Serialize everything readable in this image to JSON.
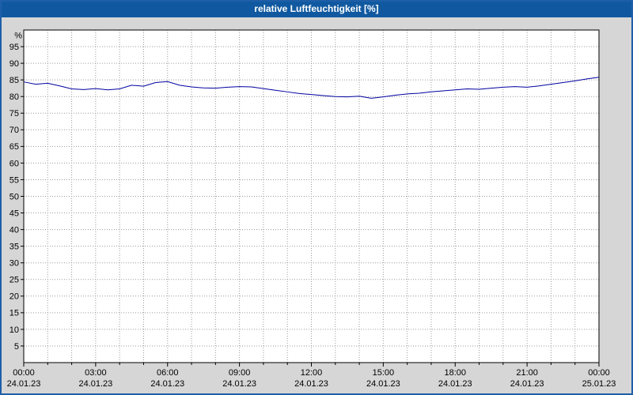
{
  "window": {
    "title": "relative Luftfeuchtigkeit [%]"
  },
  "colors": {
    "titlebar_bg": "#1059a0",
    "titlebar_text": "#ffffff",
    "chart_bg": "#d6d6d6",
    "plot_bg": "#ffffff",
    "grid": "#9a9a9a",
    "axis": "#000000",
    "line": "#0000a0",
    "frame": "#1f5fa8"
  },
  "chart_data": {
    "type": "line",
    "title": "relative Luftfeuchtigkeit [%]",
    "xlabel": "",
    "ylabel": "%",
    "ylim": [
      0,
      100
    ],
    "ytick_min": 5,
    "ytick_max": 95,
    "ytick_step": 5,
    "grid": true,
    "legend": false,
    "x_step_hours": 0.5,
    "xticks": [
      {
        "hour": 0,
        "time": "00:00",
        "date": "24.01.23"
      },
      {
        "hour": 3,
        "time": "03:00",
        "date": "24.01.23"
      },
      {
        "hour": 6,
        "time": "06:00",
        "date": "24.01.23"
      },
      {
        "hour": 9,
        "time": "09:00",
        "date": "24.01.23"
      },
      {
        "hour": 12,
        "time": "12:00",
        "date": "24.01.23"
      },
      {
        "hour": 15,
        "time": "15:00",
        "date": "24.01.23"
      },
      {
        "hour": 18,
        "time": "18:00",
        "date": "24.01.23"
      },
      {
        "hour": 21,
        "time": "21:00",
        "date": "24.01.23"
      },
      {
        "hour": 24,
        "time": "00:00",
        "date": "25.01.23"
      }
    ],
    "series": [
      {
        "name": "relative Luftfeuchtigkeit [%]",
        "color": "#0000a0",
        "values": [
          84.4,
          83.7,
          84.0,
          83.2,
          82.3,
          82.1,
          82.4,
          82.0,
          82.3,
          83.4,
          83.1,
          84.2,
          84.5,
          83.4,
          82.9,
          82.6,
          82.5,
          82.8,
          83.0,
          82.9,
          82.4,
          81.9,
          81.4,
          80.9,
          80.6,
          80.3,
          80.0,
          79.9,
          80.1,
          79.5,
          79.9,
          80.4,
          80.8,
          81.0,
          81.4,
          81.7,
          82.0,
          82.3,
          82.2,
          82.5,
          82.8,
          83.0,
          82.8,
          83.2,
          83.7,
          84.2,
          84.7,
          85.3,
          85.8
        ]
      }
    ]
  }
}
